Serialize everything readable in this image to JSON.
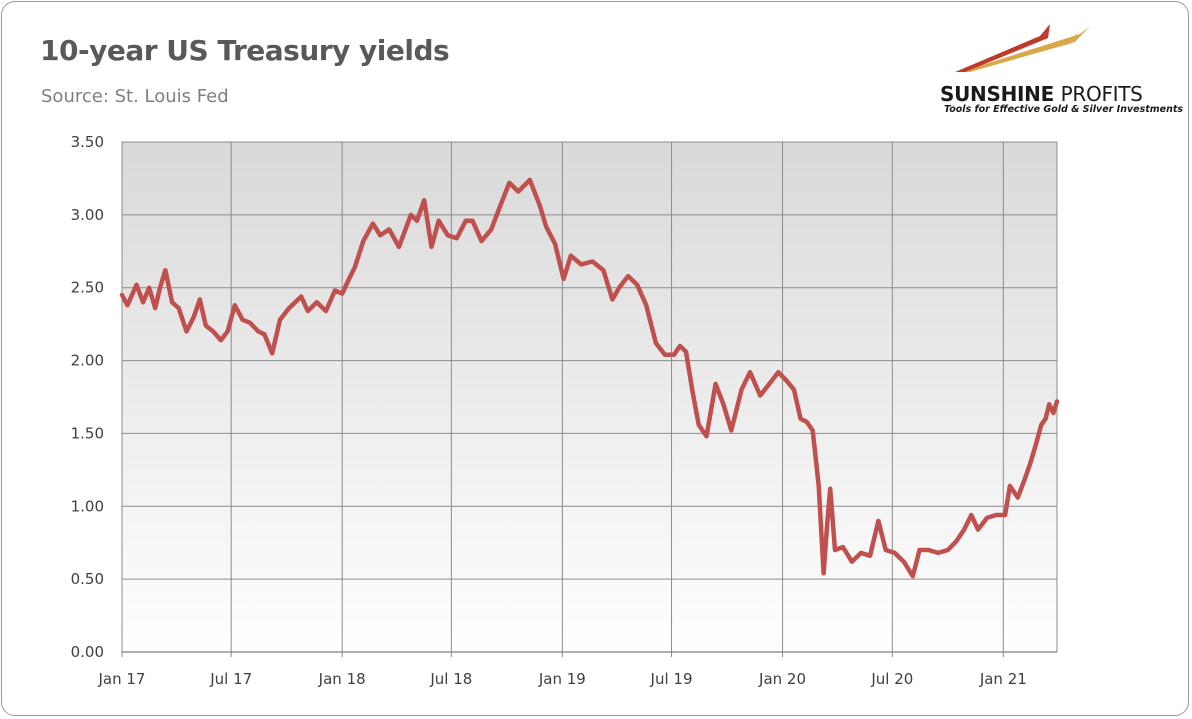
{
  "title": "10-year US Treasury yields",
  "subtitle": "Source: St. Louis Fed",
  "logo": {
    "name_bold": "SUNSHINE",
    "name_light": "PROFITS",
    "tagline": "Tools for Effective Gold & Silver Investments",
    "colors": {
      "swoosh_red": "#c0392b",
      "swoosh_gold": "#d8a84a",
      "swoosh_light": "#e9cf9d"
    }
  },
  "chart_data": {
    "type": "line",
    "title": "10-year US Treasury yields",
    "xlabel": "",
    "ylabel": "",
    "ylim": [
      0,
      3.5
    ],
    "xlim": [
      "2017-01-01",
      "2021-03-31"
    ],
    "y_ticks": [
      "0.00",
      "0.50",
      "1.00",
      "1.50",
      "2.00",
      "2.50",
      "3.00",
      "3.50"
    ],
    "x_ticks": [
      {
        "label": "Jan 17",
        "date": "2017-01-01"
      },
      {
        "label": "Jul 17",
        "date": "2017-07-01"
      },
      {
        "label": "Jan 18",
        "date": "2018-01-01"
      },
      {
        "label": "Jul 18",
        "date": "2018-07-01"
      },
      {
        "label": "Jan 19",
        "date": "2019-01-01"
      },
      {
        "label": "Jul 19",
        "date": "2019-07-01"
      },
      {
        "label": "Jan 20",
        "date": "2020-01-01"
      },
      {
        "label": "Jul 20",
        "date": "2020-07-01"
      },
      {
        "label": "Jan 21",
        "date": "2021-01-01"
      }
    ],
    "grid": true,
    "legend": "none",
    "line_color": "#c0504d",
    "series": [
      {
        "points": [
          [
            "2017-01-01",
            2.45
          ],
          [
            "2017-01-10",
            2.38
          ],
          [
            "2017-01-25",
            2.52
          ],
          [
            "2017-02-05",
            2.4
          ],
          [
            "2017-02-15",
            2.5
          ],
          [
            "2017-02-25",
            2.36
          ],
          [
            "2017-03-05",
            2.5
          ],
          [
            "2017-03-14",
            2.62
          ],
          [
            "2017-03-25",
            2.4
          ],
          [
            "2017-04-05",
            2.36
          ],
          [
            "2017-04-18",
            2.2
          ],
          [
            "2017-04-30",
            2.3
          ],
          [
            "2017-05-10",
            2.42
          ],
          [
            "2017-05-20",
            2.24
          ],
          [
            "2017-06-01",
            2.2
          ],
          [
            "2017-06-14",
            2.14
          ],
          [
            "2017-06-25",
            2.2
          ],
          [
            "2017-07-07",
            2.38
          ],
          [
            "2017-07-20",
            2.28
          ],
          [
            "2017-08-01",
            2.26
          ],
          [
            "2017-08-15",
            2.2
          ],
          [
            "2017-08-25",
            2.18
          ],
          [
            "2017-09-07",
            2.05
          ],
          [
            "2017-09-20",
            2.28
          ],
          [
            "2017-10-05",
            2.36
          ],
          [
            "2017-10-25",
            2.44
          ],
          [
            "2017-11-05",
            2.34
          ],
          [
            "2017-11-20",
            2.4
          ],
          [
            "2017-12-05",
            2.34
          ],
          [
            "2017-12-20",
            2.48
          ],
          [
            "2018-01-01",
            2.46
          ],
          [
            "2018-01-10",
            2.54
          ],
          [
            "2018-01-22",
            2.64
          ],
          [
            "2018-02-05",
            2.82
          ],
          [
            "2018-02-21",
            2.94
          ],
          [
            "2018-03-05",
            2.86
          ],
          [
            "2018-03-20",
            2.9
          ],
          [
            "2018-04-05",
            2.78
          ],
          [
            "2018-04-25",
            3.0
          ],
          [
            "2018-05-05",
            2.96
          ],
          [
            "2018-05-17",
            3.1
          ],
          [
            "2018-05-29",
            2.78
          ],
          [
            "2018-06-10",
            2.96
          ],
          [
            "2018-06-25",
            2.86
          ],
          [
            "2018-07-10",
            2.84
          ],
          [
            "2018-07-25",
            2.96
          ],
          [
            "2018-08-05",
            2.96
          ],
          [
            "2018-08-20",
            2.82
          ],
          [
            "2018-09-05",
            2.9
          ],
          [
            "2018-09-20",
            3.06
          ],
          [
            "2018-10-05",
            3.22
          ],
          [
            "2018-10-20",
            3.16
          ],
          [
            "2018-11-08",
            3.24
          ],
          [
            "2018-11-25",
            3.06
          ],
          [
            "2018-12-05",
            2.92
          ],
          [
            "2018-12-20",
            2.8
          ],
          [
            "2019-01-03",
            2.56
          ],
          [
            "2019-01-15",
            2.72
          ],
          [
            "2019-02-01",
            2.66
          ],
          [
            "2019-02-20",
            2.68
          ],
          [
            "2019-03-10",
            2.62
          ],
          [
            "2019-03-25",
            2.42
          ],
          [
            "2019-04-05",
            2.5
          ],
          [
            "2019-04-20",
            2.58
          ],
          [
            "2019-05-05",
            2.52
          ],
          [
            "2019-05-20",
            2.38
          ],
          [
            "2019-06-05",
            2.12
          ],
          [
            "2019-06-20",
            2.04
          ],
          [
            "2019-07-05",
            2.04
          ],
          [
            "2019-07-15",
            2.1
          ],
          [
            "2019-07-25",
            2.06
          ],
          [
            "2019-08-05",
            1.78
          ],
          [
            "2019-08-15",
            1.56
          ],
          [
            "2019-08-28",
            1.48
          ],
          [
            "2019-09-12",
            1.84
          ],
          [
            "2019-09-25",
            1.7
          ],
          [
            "2019-10-08",
            1.52
          ],
          [
            "2019-10-25",
            1.8
          ],
          [
            "2019-11-08",
            1.92
          ],
          [
            "2019-11-25",
            1.76
          ],
          [
            "2019-12-10",
            1.84
          ],
          [
            "2019-12-25",
            1.92
          ],
          [
            "2020-01-08",
            1.86
          ],
          [
            "2020-01-20",
            1.8
          ],
          [
            "2020-01-31",
            1.6
          ],
          [
            "2020-02-10",
            1.58
          ],
          [
            "2020-02-20",
            1.52
          ],
          [
            "2020-03-01",
            1.14
          ],
          [
            "2020-03-09",
            0.54
          ],
          [
            "2020-03-15",
            0.88
          ],
          [
            "2020-03-20",
            1.12
          ],
          [
            "2020-03-28",
            0.7
          ],
          [
            "2020-04-10",
            0.72
          ],
          [
            "2020-04-25",
            0.62
          ],
          [
            "2020-05-10",
            0.68
          ],
          [
            "2020-05-25",
            0.66
          ],
          [
            "2020-06-08",
            0.9
          ],
          [
            "2020-06-20",
            0.7
          ],
          [
            "2020-07-05",
            0.68
          ],
          [
            "2020-07-20",
            0.62
          ],
          [
            "2020-08-04",
            0.52
          ],
          [
            "2020-08-15",
            0.7
          ],
          [
            "2020-08-30",
            0.7
          ],
          [
            "2020-09-15",
            0.68
          ],
          [
            "2020-10-01",
            0.7
          ],
          [
            "2020-10-15",
            0.76
          ],
          [
            "2020-10-28",
            0.84
          ],
          [
            "2020-11-09",
            0.94
          ],
          [
            "2020-11-20",
            0.84
          ],
          [
            "2020-12-05",
            0.92
          ],
          [
            "2020-12-20",
            0.94
          ],
          [
            "2021-01-04",
            0.94
          ],
          [
            "2021-01-12",
            1.14
          ],
          [
            "2021-01-25",
            1.06
          ],
          [
            "2021-02-05",
            1.18
          ],
          [
            "2021-02-15",
            1.3
          ],
          [
            "2021-02-25",
            1.44
          ],
          [
            "2021-03-05",
            1.56
          ],
          [
            "2021-03-12",
            1.6
          ],
          [
            "2021-03-18",
            1.7
          ],
          [
            "2021-03-25",
            1.64
          ],
          [
            "2021-03-31",
            1.72
          ]
        ]
      }
    ]
  }
}
